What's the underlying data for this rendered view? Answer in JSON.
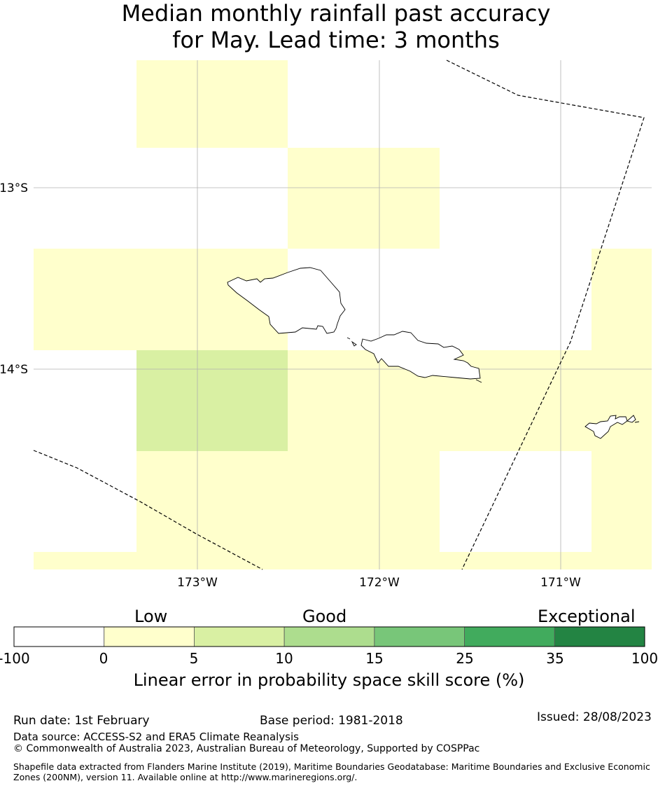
{
  "title": {
    "line1": "Median monthly rainfall past accuracy",
    "line2": "for May. Lead time: 3 months"
  },
  "map": {
    "lat_labels": [
      "13°S",
      "14°S"
    ],
    "lon_labels": [
      "173°W",
      "172°W",
      "171°W"
    ],
    "colors": {
      "lowest": "#ffffff",
      "low": "#ffffcc",
      "fair": "#d9f0a3",
      "coast": "#000000",
      "boundary": "#000000",
      "grid": "#b0b0b0"
    }
  },
  "colorbar": {
    "categories": [
      "Low",
      "Good",
      "Exceptional"
    ],
    "ticks": [
      "-100",
      "0",
      "5",
      "10",
      "15",
      "25",
      "35",
      "100"
    ],
    "colors": [
      "#ffffff",
      "#ffffcc",
      "#d9f0a3",
      "#addd8e",
      "#78c679",
      "#41ab5d",
      "#238443"
    ],
    "label": "Linear error in probability space skill score (%)"
  },
  "footer": {
    "run_date": "Run date: 1st February",
    "base_period": "Base period: 1981-2018",
    "issued": "Issued: 28/08/2023",
    "data_source": "Data source: ACCESS-S2 and ERA5 Climate Reanalysis",
    "copyright": "© Commonwealth of Australia 2023, Australian Bureau of Meteorology, Supported by COSPPac",
    "shapefile": "Shapefile data extracted from Flanders Marine Institute (2019), Maritime Boundaries Geodatabase: Maritime Boundaries and Exclusive Economic Zones (200NM), version 11. Available online at http://www.marineregions.org/."
  }
}
